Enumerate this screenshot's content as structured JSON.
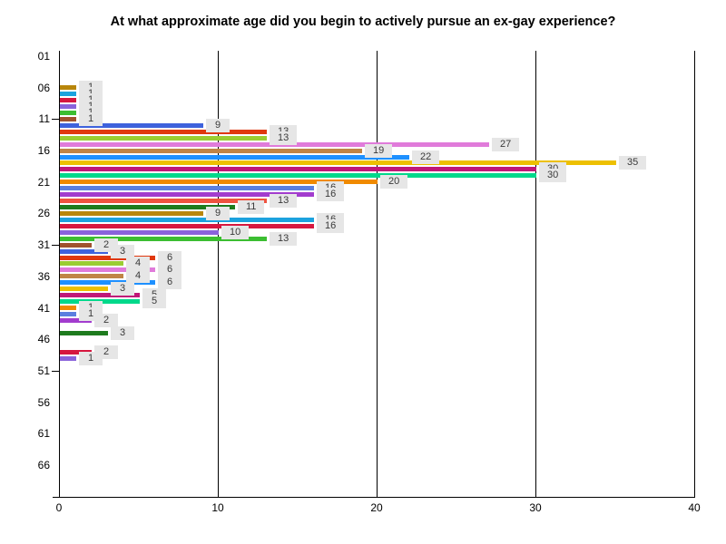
{
  "chart_data": {
    "type": "bar",
    "orientation": "horizontal",
    "title": "At what approximate age did you begin to actively pursue an ex-gay experience?",
    "x_axis": {
      "min": 0,
      "max": 40,
      "tick_labels": [
        "0",
        "10",
        "20",
        "30",
        "40"
      ],
      "tick_values": [
        0,
        10,
        20,
        30,
        40
      ],
      "gridline_values": [
        10,
        20,
        30,
        40
      ],
      "grid": true
    },
    "y_axis": {
      "unit": "age (years)",
      "tick_labels": [
        "01",
        "06",
        "11",
        "16",
        "21",
        "26",
        "31",
        "36",
        "41",
        "46",
        "51",
        "56",
        "61",
        "66"
      ],
      "dash_tick_labels": [
        "11",
        "31",
        "51"
      ],
      "category_range": [
        1,
        70
      ]
    },
    "legend": "none",
    "value_label_style": {
      "background": "#e6e6e6",
      "text_color": "#3a3a3a"
    },
    "bars": [
      {
        "age": 6,
        "value": 1,
        "color": "#B8860B"
      },
      {
        "age": 7,
        "value": 1,
        "color": "#1CA2DE"
      },
      {
        "age": 8,
        "value": 1,
        "color": "#D6173F"
      },
      {
        "age": 9,
        "value": 1,
        "color": "#8A63DB"
      },
      {
        "age": 10,
        "value": 1,
        "color": "#3CBE32"
      },
      {
        "age": 11,
        "value": 1,
        "color": "#A0522D"
      },
      {
        "age": 12,
        "value": 9,
        "color": "#3E62DC"
      },
      {
        "age": 13,
        "value": 13,
        "color": "#E0380E"
      },
      {
        "age": 14,
        "value": 13,
        "color": "#9ACD32"
      },
      {
        "age": 15,
        "value": 27,
        "color": "#E07BDA"
      },
      {
        "age": 16,
        "value": 19,
        "color": "#C08445"
      },
      {
        "age": 17,
        "value": 22,
        "color": "#1E90FF"
      },
      {
        "age": 18,
        "value": 35,
        "color": "#EDC001"
      },
      {
        "age": 19,
        "value": 30,
        "color": "#C01878"
      },
      {
        "age": 20,
        "value": 30,
        "color": "#00D98B"
      },
      {
        "age": 21,
        "value": 20,
        "color": "#F08A00"
      },
      {
        "age": 22,
        "value": 16,
        "color": "#5B7FDF"
      },
      {
        "age": 23,
        "value": 16,
        "color": "#A23CCE"
      },
      {
        "age": 24,
        "value": 13,
        "color": "#EF5340"
      },
      {
        "age": 25,
        "value": 11,
        "color": "#1E7B1E"
      },
      {
        "age": 26,
        "value": 9,
        "color": "#B8860B"
      },
      {
        "age": 27,
        "value": 16,
        "color": "#1CA2DE"
      },
      {
        "age": 28,
        "value": 16,
        "color": "#D6173F"
      },
      {
        "age": 29,
        "value": 10,
        "color": "#8A63DB"
      },
      {
        "age": 30,
        "value": 13,
        "color": "#3CBE32"
      },
      {
        "age": 31,
        "value": 2,
        "color": "#A0522D"
      },
      {
        "age": 32,
        "value": 3,
        "color": "#3E62DC"
      },
      {
        "age": 33,
        "value": 6,
        "color": "#E0380E"
      },
      {
        "age": 34,
        "value": 4,
        "color": "#9ACD32"
      },
      {
        "age": 35,
        "value": 6,
        "color": "#E07BDA"
      },
      {
        "age": 36,
        "value": 4,
        "color": "#C08445"
      },
      {
        "age": 37,
        "value": 6,
        "color": "#1E90FF"
      },
      {
        "age": 38,
        "value": 3,
        "color": "#EDC001"
      },
      {
        "age": 39,
        "value": 5,
        "color": "#C01878"
      },
      {
        "age": 40,
        "value": 5,
        "color": "#00D98B"
      },
      {
        "age": 41,
        "value": 1,
        "color": "#F08A00"
      },
      {
        "age": 42,
        "value": 1,
        "color": "#5B7FDF"
      },
      {
        "age": 43,
        "value": 2,
        "color": "#A23CCE"
      },
      {
        "age": 45,
        "value": 3,
        "color": "#1E7B1E"
      },
      {
        "age": 48,
        "value": 2,
        "color": "#D6173F"
      },
      {
        "age": 49,
        "value": 1,
        "color": "#8A63DB"
      }
    ]
  }
}
